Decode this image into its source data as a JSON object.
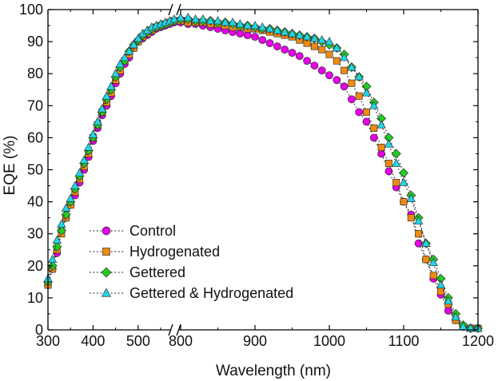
{
  "chart_data": {
    "type": "scatter",
    "xlabel": "Wavelength (nm)",
    "ylabel": "EQE (%)",
    "x_axis_break": [
      580,
      800
    ],
    "xlim_left_segment": [
      300,
      580
    ],
    "xlim_right_segment": [
      800,
      1200
    ],
    "ylim": [
      0,
      100
    ],
    "x_ticks": [
      300,
      400,
      500,
      800,
      900,
      1000,
      1100,
      1200
    ],
    "y_ticks": [
      0,
      10,
      20,
      30,
      40,
      50,
      60,
      70,
      80,
      90,
      100
    ],
    "legend_placement": "bottom-left",
    "grid": false,
    "series": [
      {
        "name": "Control",
        "marker": "circle",
        "color": "#e600e6",
        "x": [
          300,
          310,
          320,
          330,
          340,
          350,
          360,
          370,
          380,
          390,
          400,
          410,
          420,
          430,
          440,
          450,
          460,
          470,
          480,
          490,
          500,
          510,
          520,
          530,
          540,
          550,
          560,
          570,
          580,
          800,
          810,
          820,
          830,
          840,
          850,
          860,
          870,
          880,
          890,
          900,
          910,
          920,
          930,
          940,
          950,
          960,
          970,
          980,
          990,
          1000,
          1010,
          1020,
          1030,
          1040,
          1050,
          1060,
          1070,
          1080,
          1090,
          1100,
          1110,
          1120,
          1130,
          1140,
          1150,
          1160,
          1170,
          1180,
          1190,
          1200
        ],
        "y": [
          14,
          19,
          24,
          31,
          35,
          39,
          42,
          46,
          50,
          54,
          59,
          63,
          67,
          70,
          73,
          77,
          80,
          83,
          85,
          88,
          90,
          91,
          92,
          93,
          94,
          94.5,
          95,
          95.5,
          96,
          96,
          95.5,
          95.5,
          95,
          94.5,
          94,
          93.5,
          93,
          92.5,
          92,
          91.5,
          90.5,
          89.5,
          88.5,
          87.5,
          86.5,
          85.5,
          84,
          82.5,
          81,
          79.5,
          78,
          76,
          72,
          68,
          65,
          60,
          55,
          49.5,
          44.5,
          40,
          36,
          27,
          22,
          16,
          11,
          6,
          3,
          1,
          0.5,
          0.5
        ]
      },
      {
        "name": "Hydrogenated",
        "marker": "square",
        "color": "#f08a10",
        "x": [
          300,
          310,
          320,
          330,
          340,
          350,
          360,
          370,
          380,
          390,
          400,
          410,
          420,
          430,
          440,
          450,
          460,
          470,
          480,
          490,
          500,
          510,
          520,
          530,
          540,
          550,
          560,
          570,
          580,
          800,
          810,
          820,
          830,
          840,
          850,
          860,
          870,
          880,
          890,
          900,
          910,
          920,
          930,
          940,
          950,
          960,
          970,
          980,
          990,
          1000,
          1010,
          1020,
          1030,
          1040,
          1050,
          1060,
          1070,
          1080,
          1090,
          1100,
          1110,
          1120,
          1130,
          1140,
          1150,
          1160,
          1170,
          1180,
          1190,
          1200
        ],
        "y": [
          14,
          19,
          25,
          30,
          35,
          39,
          43,
          47,
          51,
          55,
          60,
          64,
          68,
          71,
          74,
          78,
          81,
          84,
          86,
          88,
          90,
          91.5,
          92.5,
          93.5,
          94.5,
          95,
          95.5,
          96,
          96.5,
          96.5,
          96,
          96,
          96,
          95.5,
          95.5,
          95,
          94.5,
          94.5,
          94,
          94,
          93.5,
          93,
          92.5,
          92,
          91.5,
          90.5,
          89.5,
          88.5,
          87.5,
          86,
          84,
          81,
          77,
          73,
          68,
          63,
          57,
          52,
          46,
          40,
          35,
          30,
          22,
          17,
          12,
          8,
          3,
          1,
          0.5,
          0.5
        ]
      },
      {
        "name": "Gettered",
        "marker": "diamond",
        "color": "#22cc22",
        "x": [
          300,
          310,
          320,
          330,
          340,
          350,
          360,
          370,
          380,
          390,
          400,
          410,
          420,
          430,
          440,
          450,
          460,
          470,
          480,
          490,
          500,
          510,
          520,
          530,
          540,
          550,
          560,
          570,
          580,
          800,
          810,
          820,
          830,
          840,
          850,
          860,
          870,
          880,
          890,
          900,
          910,
          920,
          930,
          940,
          950,
          960,
          970,
          980,
          990,
          1000,
          1010,
          1020,
          1030,
          1040,
          1050,
          1060,
          1070,
          1080,
          1090,
          1100,
          1110,
          1120,
          1130,
          1140,
          1150,
          1160,
          1170,
          1180,
          1190,
          1200
        ],
        "y": [
          15,
          20,
          26,
          31,
          36,
          40,
          44,
          48,
          52,
          56,
          60,
          64,
          68,
          72,
          75,
          79,
          82,
          84,
          87,
          89,
          90.5,
          92,
          93,
          94,
          94.5,
          95,
          95.5,
          96,
          96.5,
          97,
          97,
          96.5,
          96.5,
          96.5,
          96,
          96,
          95.5,
          95,
          95,
          94.5,
          94,
          94,
          93.5,
          93,
          92.5,
          92,
          91.5,
          91,
          90,
          89,
          88,
          86,
          82,
          79,
          76,
          71,
          66,
          60,
          55,
          49,
          42,
          35,
          27,
          22,
          16,
          10,
          5,
          1.5,
          0.5,
          0.5
        ]
      },
      {
        "name": "Gettered & Hydrogenated",
        "marker": "triangle",
        "color": "#20d6e6",
        "x": [
          300,
          310,
          320,
          330,
          340,
          350,
          360,
          370,
          380,
          390,
          400,
          410,
          420,
          430,
          440,
          450,
          460,
          470,
          480,
          490,
          500,
          510,
          520,
          530,
          540,
          550,
          560,
          570,
          580,
          800,
          810,
          820,
          830,
          840,
          850,
          860,
          870,
          880,
          890,
          900,
          910,
          920,
          930,
          940,
          950,
          960,
          970,
          980,
          990,
          1000,
          1010,
          1020,
          1030,
          1040,
          1050,
          1060,
          1070,
          1080,
          1090,
          1100,
          1110,
          1120,
          1130,
          1140,
          1150,
          1160,
          1170,
          1180,
          1190,
          1200
        ],
        "y": [
          16,
          22,
          28,
          33,
          38,
          41,
          45,
          49,
          53,
          57,
          61,
          65,
          69,
          73,
          76,
          80,
          83,
          85,
          87,
          89,
          91,
          92.5,
          93.5,
          94.5,
          95,
          95.5,
          96,
          96.5,
          97,
          97.5,
          97.5,
          97,
          97,
          96.5,
          96.5,
          96,
          96,
          95.5,
          95,
          95,
          94.5,
          94,
          93.5,
          93,
          92.5,
          92,
          91.5,
          91,
          90.5,
          90,
          88,
          85,
          82,
          79,
          74,
          70,
          64,
          58,
          52,
          46,
          41,
          34,
          27,
          21,
          14,
          9,
          4,
          1,
          0.5,
          0.5
        ]
      }
    ]
  }
}
